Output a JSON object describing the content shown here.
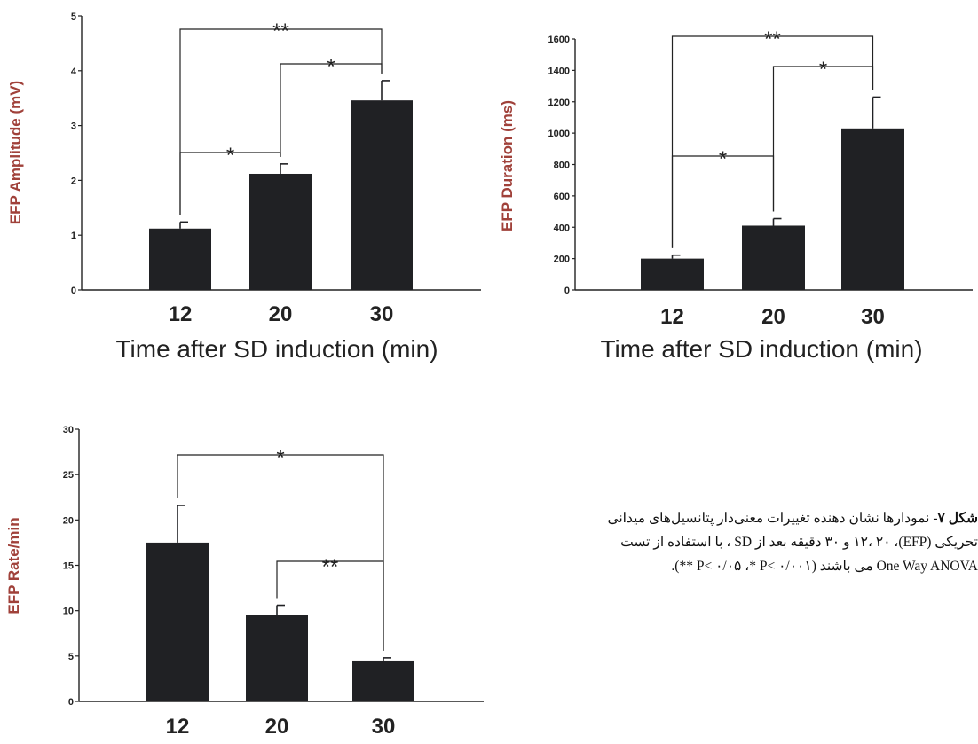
{
  "colors": {
    "bar": "#202124",
    "axis": "#222222",
    "ylabel": "#a0413a",
    "text": "#222222"
  },
  "chart_data": [
    {
      "type": "bar",
      "categories": [
        "12",
        "20",
        "30"
      ],
      "values": [
        1.12,
        2.12,
        3.46
      ],
      "errors": [
        0.12,
        0.18,
        0.36
      ],
      "ylabel": "EFP Amplitude (mV)",
      "xlabel": "Time after SD induction (min)",
      "ylim": [
        0,
        5
      ],
      "yticks": [
        "0",
        "1",
        "2",
        "3",
        "4",
        "5"
      ],
      "significance": [
        {
          "from": "12",
          "to": "20",
          "label": "*"
        },
        {
          "from": "20",
          "to": "30",
          "label": "*"
        },
        {
          "from": "12",
          "to": "30",
          "label": "**"
        }
      ],
      "grid": false
    },
    {
      "type": "bar",
      "categories": [
        "12",
        "20",
        "30"
      ],
      "values": [
        200,
        410,
        1030
      ],
      "errors": [
        22,
        45,
        200
      ],
      "ylabel": "EFP Duration (ms)",
      "xlabel": "Time after SD induction (min)",
      "ylim": [
        0,
        1600
      ],
      "yticks": [
        "0",
        "200",
        "400",
        "600",
        "800",
        "1000",
        "1200",
        "1400",
        "1600"
      ],
      "significance": [
        {
          "from": "12",
          "to": "20",
          "label": "*"
        },
        {
          "from": "20",
          "to": "30",
          "label": "*"
        },
        {
          "from": "12",
          "to": "30",
          "label": "**"
        }
      ],
      "grid": false
    },
    {
      "type": "bar",
      "categories": [
        "12",
        "20",
        "30"
      ],
      "values": [
        17.5,
        9.5,
        4.5
      ],
      "errors": [
        4.1,
        1.1,
        0.3
      ],
      "ylabel": "EFP Rate/min",
      "xlabel": "",
      "ylim": [
        0,
        30
      ],
      "yticks": [
        "0",
        "5",
        "10",
        "15",
        "20",
        "25",
        "30"
      ],
      "significance": [
        {
          "from": "20",
          "to": "30",
          "label": "**"
        },
        {
          "from": "12",
          "to": "30",
          "label": "*"
        }
      ],
      "grid": false
    }
  ],
  "caption": {
    "label": "شکل ۷",
    "line1": "- نمودارها نشان دهنده تغییرات معنی‌دار پتانسیل‌های میدانی",
    "line2": "تحریکی (EFP)، ۱۲، ۲۰ و ۳۰ دقیقه بعد از SD ، با استفاده از تست",
    "line3": "One Way ANOVA می باشند (P< ۰/۰۵ ،* P< ۰/۰۰۱ **)."
  }
}
